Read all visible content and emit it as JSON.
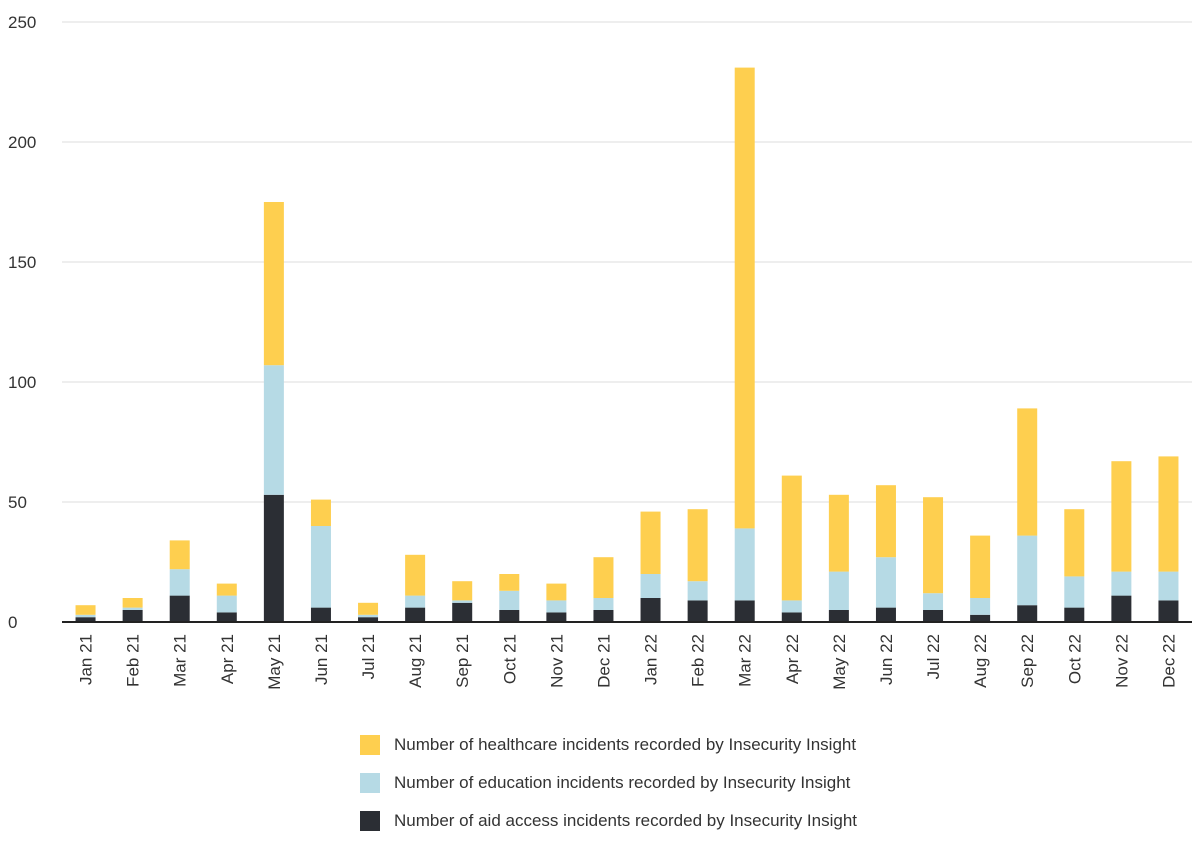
{
  "chart_data": {
    "type": "bar",
    "stacked": true,
    "categories": [
      "Jan 21",
      "Feb 21",
      "Mar 21",
      "Apr 21",
      "May 21",
      "Jun 21",
      "Jul 21",
      "Aug 21",
      "Sep 21",
      "Oct 21",
      "Nov 21",
      "Dec 21",
      "Jan 22",
      "Feb 22",
      "Mar 22",
      "Apr 22",
      "May 22",
      "Jun 22",
      "Jul 22",
      "Aug 22",
      "Sep 22",
      "Oct 22",
      "Nov 22",
      "Dec 22"
    ],
    "series": [
      {
        "name": "Number of aid access incidents recorded by Insecurity Insight",
        "color": "#2b2e34",
        "values": [
          2,
          5,
          11,
          4,
          53,
          6,
          2,
          6,
          8,
          5,
          4,
          5,
          10,
          9,
          9,
          4,
          5,
          6,
          5,
          3,
          7,
          6,
          11,
          9
        ]
      },
      {
        "name": "Number of education incidents recorded by Insecurity Insight",
        "color": "#b6dae5",
        "values": [
          1,
          1,
          11,
          7,
          54,
          34,
          1,
          5,
          1,
          8,
          5,
          5,
          10,
          8,
          30,
          5,
          16,
          21,
          7,
          7,
          29,
          13,
          10,
          12
        ]
      },
      {
        "name": "Number of healthcare incidents recorded by Insecurity Insight",
        "color": "#fecf4f",
        "values": [
          4,
          4,
          12,
          5,
          68,
          11,
          5,
          17,
          8,
          7,
          7,
          17,
          26,
          30,
          192,
          52,
          32,
          30,
          40,
          26,
          53,
          28,
          46,
          48
        ]
      }
    ],
    "yticks": [
      0,
      50,
      100,
      150,
      200,
      250
    ],
    "ylim": [
      0,
      250
    ],
    "grid": true,
    "legend_position": "bottom"
  }
}
